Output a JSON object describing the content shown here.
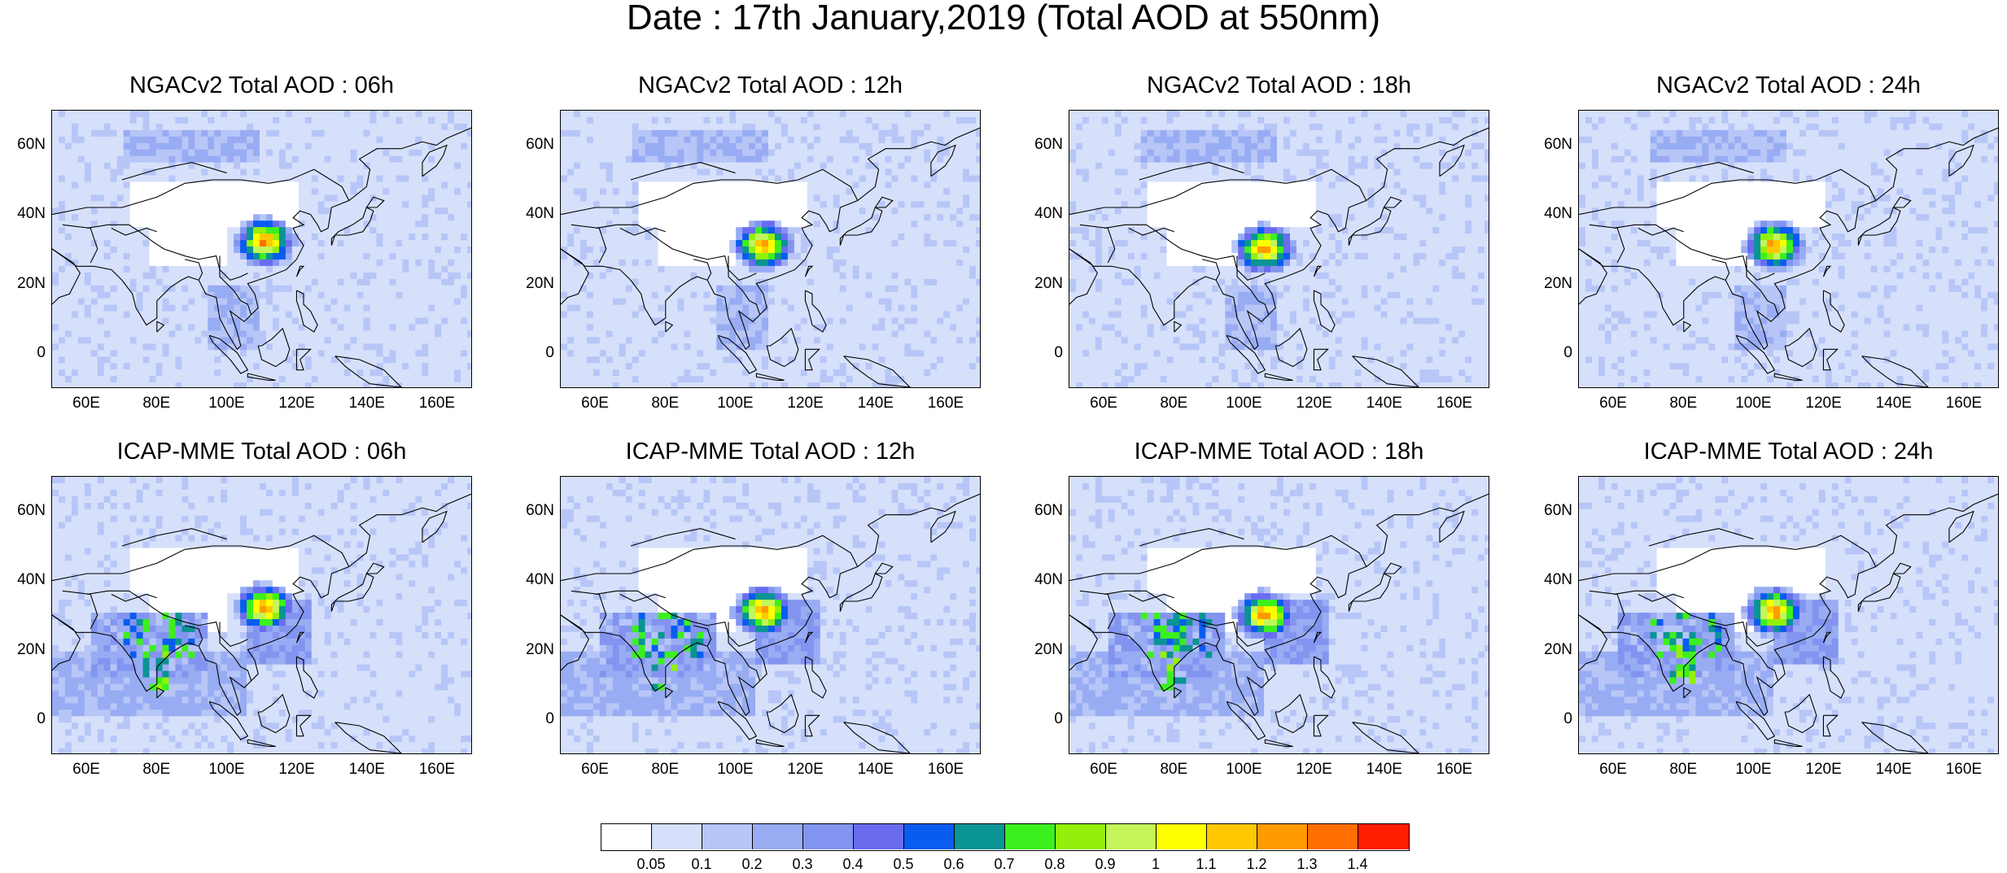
{
  "title": "Date : 17th January,2019 (Total AOD at 550nm)",
  "panels": [
    {
      "title": "NGACv2 Total AOD : 06h",
      "model": "ngac",
      "hotspot": 0
    },
    {
      "title": "NGACv2 Total AOD : 12h",
      "model": "ngac",
      "hotspot": 1
    },
    {
      "title": "NGACv2 Total AOD : 18h",
      "model": "ngac",
      "hotspot": 2
    },
    {
      "title": "NGACv2 Total AOD : 24h",
      "model": "ngac",
      "hotspot": 3
    },
    {
      "title": "ICAP-MME Total AOD : 06h",
      "model": "icap",
      "hotspot": 0
    },
    {
      "title": "ICAP-MME Total AOD : 12h",
      "model": "icap",
      "hotspot": 1
    },
    {
      "title": "ICAP-MME Total AOD : 18h",
      "model": "icap",
      "hotspot": 2
    },
    {
      "title": "ICAP-MME Total AOD : 24h",
      "model": "icap",
      "hotspot": 3
    }
  ],
  "lat_labels": [
    "60N",
    "40N",
    "20N",
    "0"
  ],
  "lon_labels": [
    "60E",
    "80E",
    "100E",
    "120E",
    "140E",
    "160E"
  ],
  "map_extent": {
    "lon": [
      50,
      170
    ],
    "lat": [
      -10,
      70
    ]
  },
  "colorbar": {
    "labels": [
      "0.05",
      "0.1",
      "0.2",
      "0.3",
      "0.4",
      "0.5",
      "0.6",
      "0.7",
      "0.8",
      "0.9",
      "1",
      "1.1",
      "1.2",
      "1.3",
      "1.4"
    ],
    "colors": [
      "#ffffff",
      "#d6e0fb",
      "#b7c6f7",
      "#98acf3",
      "#8394f0",
      "#6a6cf0",
      "#0a5cf0",
      "#0a9494",
      "#3cf01e",
      "#94f00a",
      "#c3f55a",
      "#ffff00",
      "#ffc800",
      "#ff9b00",
      "#ff6e00",
      "#ff1e00"
    ]
  }
}
